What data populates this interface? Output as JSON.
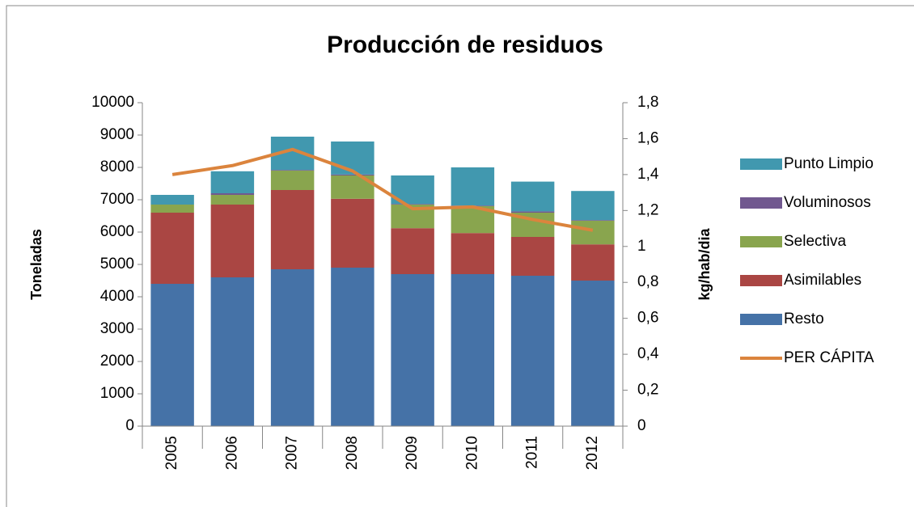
{
  "chart_data": {
    "type": "bar",
    "title": "Producción de residuos",
    "ylabel": "Toneladas",
    "y2label": "kg/hab/dia",
    "categories": [
      "2005",
      "2006",
      "2007",
      "2008",
      "2009",
      "2010",
      "2011",
      "2012"
    ],
    "stacked": true,
    "series": [
      {
        "name": "Resto",
        "color": "#4572a7",
        "values": [
          4400,
          4600,
          4850,
          4900,
          4700,
          4700,
          4650,
          4500
        ]
      },
      {
        "name": "Asimilables",
        "color": "#aa4643",
        "values": [
          2200,
          2250,
          2450,
          2130,
          1420,
          1270,
          1200,
          1120
        ]
      },
      {
        "name": "Selectiva",
        "color": "#89a54e",
        "values": [
          250,
          300,
          600,
          720,
          730,
          830,
          750,
          730
        ]
      },
      {
        "name": "Voluminosos",
        "color": "#71588f",
        "values": [
          0,
          50,
          20,
          30,
          20,
          20,
          40,
          20
        ]
      },
      {
        "name": "Punto Limpio",
        "color": "#4198af",
        "values": [
          300,
          680,
          1030,
          1020,
          880,
          1180,
          920,
          900
        ]
      },
      {
        "name": "PER CÁPITA",
        "color": "#db843d",
        "type": "line",
        "axis": "y2",
        "values": [
          1.4,
          1.45,
          1.54,
          1.42,
          1.21,
          1.22,
          1.15,
          1.09
        ]
      }
    ],
    "ylim": [
      0,
      10000
    ],
    "yticks": [
      0,
      1000,
      2000,
      3000,
      4000,
      5000,
      6000,
      7000,
      8000,
      9000,
      10000
    ],
    "y2lim": [
      0,
      1.8
    ],
    "y2ticks": [
      0,
      {
        "value": 0.2,
        "label": "0,2"
      },
      {
        "value": 0.4,
        "label": "0,4"
      },
      {
        "value": 0.6,
        "label": "0,6"
      },
      {
        "value": 0.8,
        "label": "0,8"
      },
      1,
      {
        "value": 1.2,
        "label": "1,2"
      },
      {
        "value": 1.4,
        "label": "1,4"
      },
      {
        "value": 1.6,
        "label": "1,6"
      },
      {
        "value": 1.8,
        "label": "1,8"
      }
    ],
    "legend": "right"
  }
}
